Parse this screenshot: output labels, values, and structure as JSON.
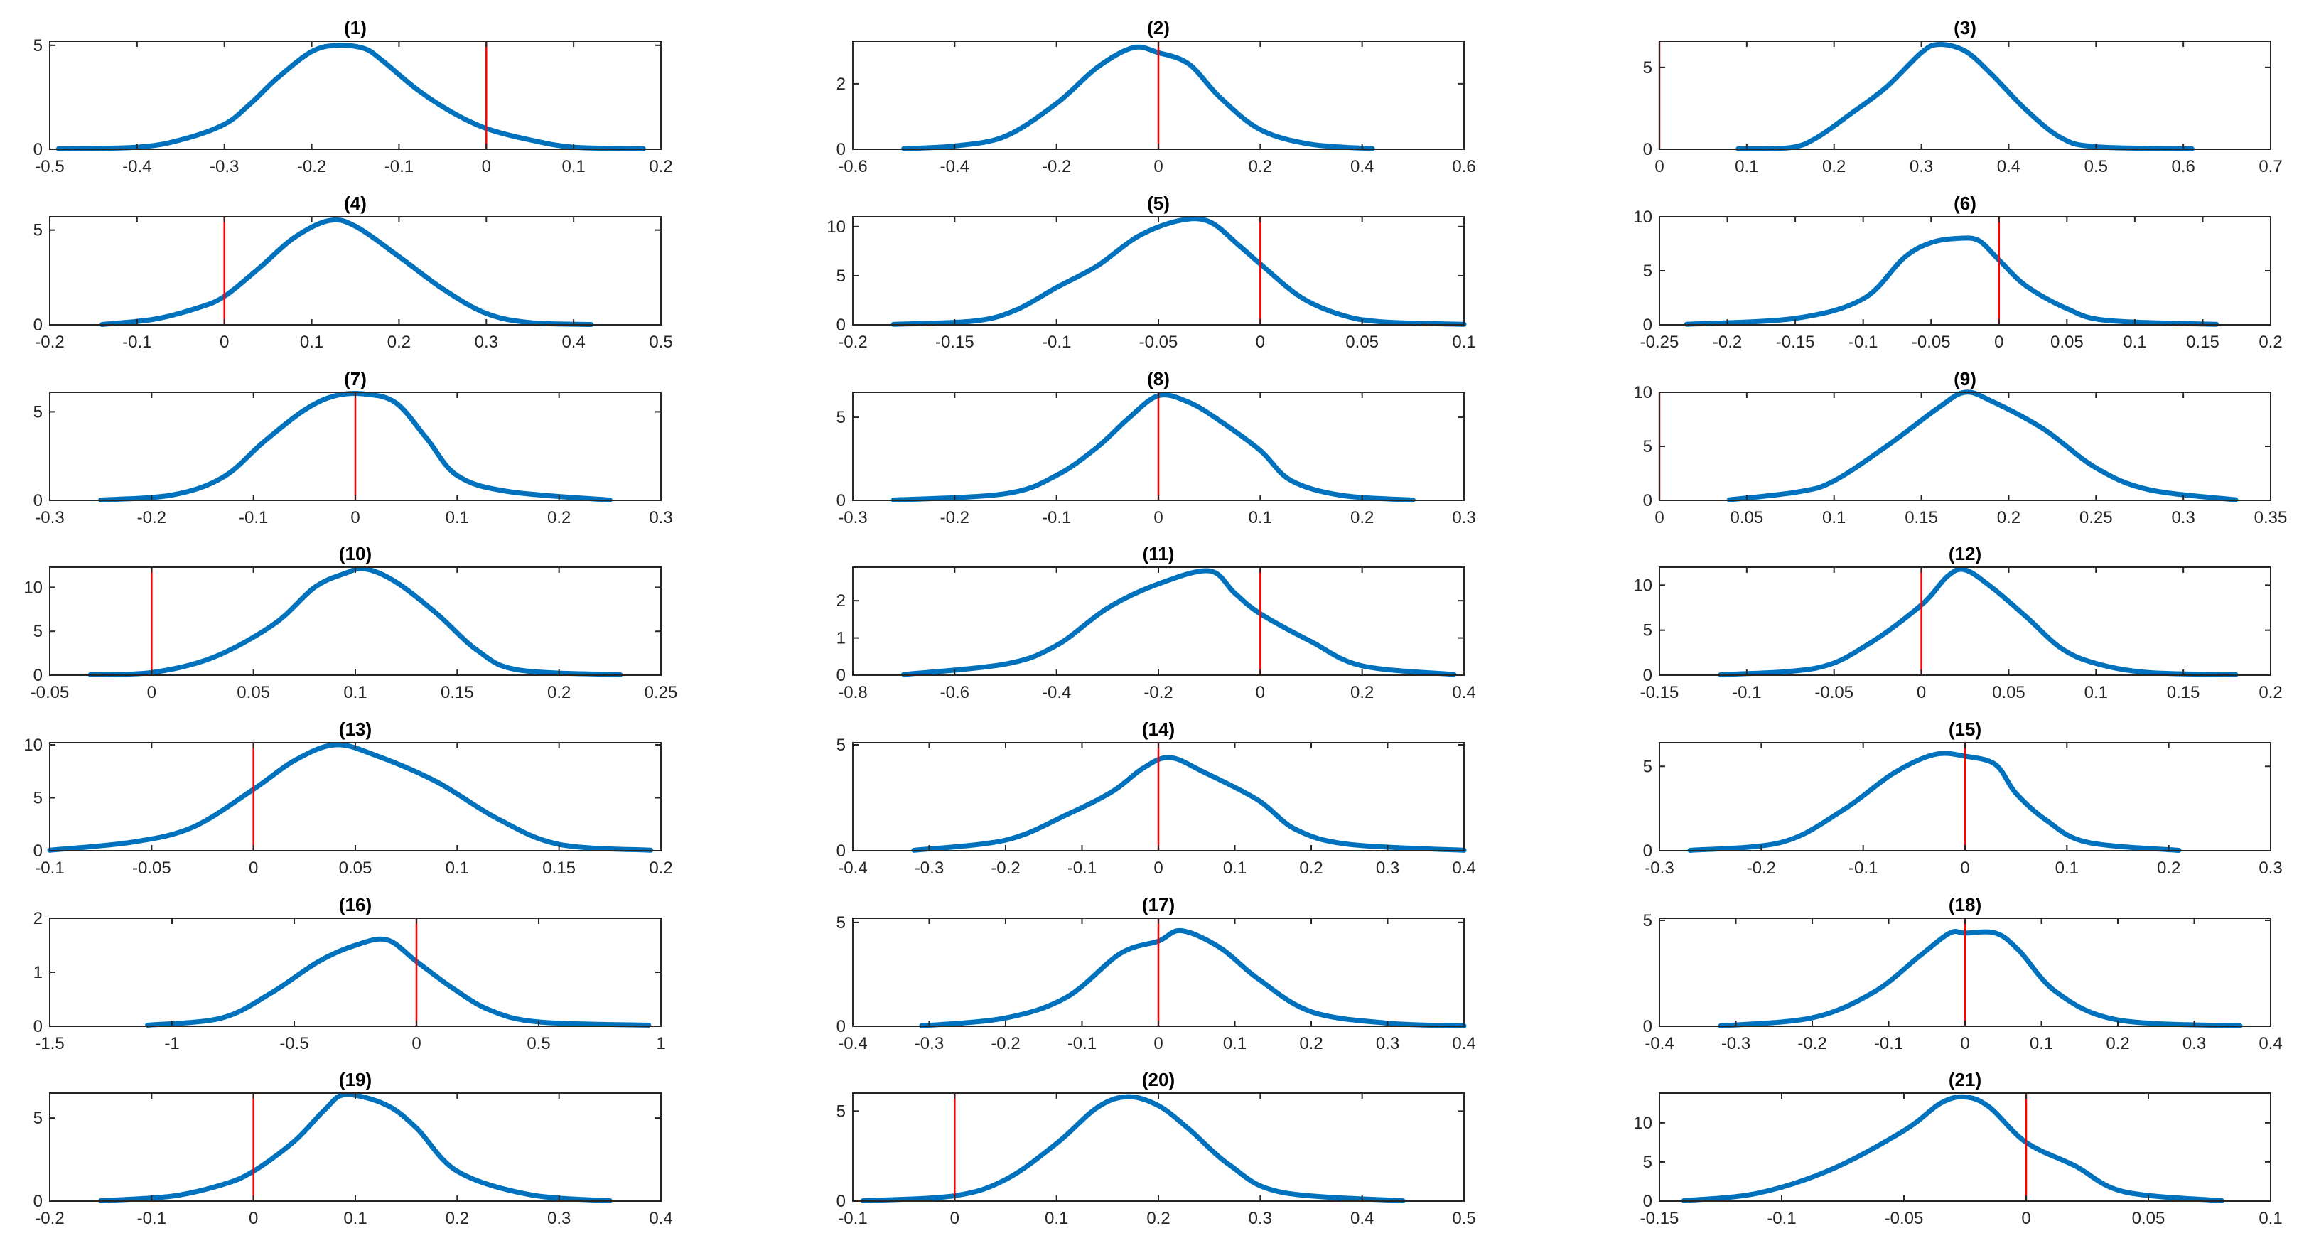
{
  "colors": {
    "density": "#0072BD",
    "reference_line": "#FF0000",
    "axes": "#262626",
    "background": "#ffffff"
  },
  "chart_data": [
    {
      "type": "line",
      "title": "(1)",
      "xlim": [
        -0.5,
        0.2
      ],
      "ylim": [
        0,
        5.2
      ],
      "xticks": [
        -0.5,
        -0.4,
        -0.3,
        -0.2,
        -0.1,
        0,
        0.1,
        0.2
      ],
      "xtick_labels": [
        "-0.5",
        "-0.4",
        "-0.3",
        "-0.2",
        "-0.1",
        "0",
        "0.1",
        "0.2"
      ],
      "yticks": [
        0,
        5
      ],
      "ytick_labels": [
        "0",
        "5"
      ],
      "reference_x": 0,
      "x": [
        -0.49,
        -0.4,
        -0.35,
        -0.3,
        -0.27,
        -0.24,
        -0.2,
        -0.17,
        -0.14,
        -0.12,
        -0.08,
        -0.04,
        0,
        0.05,
        0.1,
        0.18
      ],
      "y": [
        0.02,
        0.1,
        0.45,
        1.2,
        2.2,
        3.4,
        4.7,
        5.0,
        4.85,
        4.3,
        2.9,
        1.8,
        1.0,
        0.45,
        0.1,
        0.02
      ]
    },
    {
      "type": "line",
      "title": "(2)",
      "xlim": [
        -0.6,
        0.6
      ],
      "ylim": [
        0,
        3.3
      ],
      "xticks": [
        -0.6,
        -0.4,
        -0.2,
        0,
        0.2,
        0.4,
        0.6
      ],
      "xtick_labels": [
        "-0.6",
        "-0.4",
        "-0.2",
        "0",
        "0.2",
        "0.4",
        "0.6"
      ],
      "yticks": [
        0,
        2
      ],
      "ytick_labels": [
        "0",
        "2"
      ],
      "reference_x": 0,
      "x": [
        -0.5,
        -0.4,
        -0.3,
        -0.2,
        -0.12,
        -0.05,
        0.0,
        0.06,
        0.12,
        0.2,
        0.3,
        0.42
      ],
      "y": [
        0.02,
        0.1,
        0.4,
        1.4,
        2.5,
        3.1,
        2.95,
        2.6,
        1.6,
        0.6,
        0.15,
        0.02
      ]
    },
    {
      "type": "line",
      "title": "(3)",
      "xlim": [
        0,
        0.7
      ],
      "ylim": [
        0,
        6.6
      ],
      "xticks": [
        0,
        0.1,
        0.2,
        0.3,
        0.4,
        0.5,
        0.6,
        0.7
      ],
      "xtick_labels": [
        "0",
        "0.1",
        "0.2",
        "0.3",
        "0.4",
        "0.5",
        "0.6",
        "0.7"
      ],
      "yticks": [
        0,
        5
      ],
      "ytick_labels": [
        "0",
        "5"
      ],
      "reference_x": 0,
      "x": [
        0.09,
        0.15,
        0.18,
        0.22,
        0.26,
        0.3,
        0.32,
        0.35,
        0.38,
        0.42,
        0.46,
        0.5,
        0.61
      ],
      "y": [
        0.02,
        0.1,
        0.7,
        2.2,
        3.8,
        5.9,
        6.4,
        6.0,
        4.6,
        2.4,
        0.7,
        0.15,
        0.02
      ]
    },
    {
      "type": "line",
      "title": "(4)",
      "xlim": [
        -0.2,
        0.5
      ],
      "ylim": [
        0,
        5.7
      ],
      "xticks": [
        -0.2,
        -0.1,
        0,
        0.1,
        0.2,
        0.3,
        0.4,
        0.5
      ],
      "xtick_labels": [
        "-0.2",
        "-0.1",
        "0",
        "0.1",
        "0.2",
        "0.3",
        "0.4",
        "0.5"
      ],
      "yticks": [
        0,
        5
      ],
      "ytick_labels": [
        "0",
        "5"
      ],
      "reference_x": 0,
      "x": [
        -0.14,
        -0.08,
        -0.03,
        0.0,
        0.04,
        0.08,
        0.12,
        0.15,
        0.2,
        0.25,
        0.3,
        0.35,
        0.42
      ],
      "y": [
        0.02,
        0.3,
        0.9,
        1.5,
        3.0,
        4.6,
        5.5,
        5.2,
        3.6,
        1.9,
        0.6,
        0.12,
        0.02
      ]
    },
    {
      "type": "line",
      "title": "(5)",
      "xlim": [
        -0.2,
        0.1
      ],
      "ylim": [
        0,
        11
      ],
      "xticks": [
        -0.2,
        -0.15,
        -0.1,
        -0.05,
        0,
        0.05,
        0.1
      ],
      "xtick_labels": [
        "-0.2",
        "-0.15",
        "-0.1",
        "-0.05",
        "0",
        "0.05",
        "0.1"
      ],
      "yticks": [
        0,
        5,
        10
      ],
      "ytick_labels": [
        "0",
        "5",
        "10"
      ],
      "reference_x": 0,
      "x": [
        -0.18,
        -0.14,
        -0.12,
        -0.1,
        -0.08,
        -0.06,
        -0.04,
        -0.025,
        -0.01,
        0.0,
        0.02,
        0.04,
        0.06,
        0.1
      ],
      "y": [
        0.05,
        0.4,
        1.5,
        3.8,
        6.0,
        9.0,
        10.6,
        10.5,
        8.0,
        6.2,
        2.8,
        1.0,
        0.3,
        0.05
      ]
    },
    {
      "type": "line",
      "title": "(6)",
      "xlim": [
        -0.25,
        0.2
      ],
      "ylim": [
        0,
        10
      ],
      "xticks": [
        -0.25,
        -0.2,
        -0.15,
        -0.1,
        -0.05,
        0,
        0.05,
        0.1,
        0.15,
        0.2
      ],
      "xtick_labels": [
        "-0.25",
        "-0.2",
        "-0.15",
        "-0.1",
        "-0.05",
        "0",
        "0.05",
        "0.1",
        "0.15",
        "0.2"
      ],
      "yticks": [
        0,
        5,
        10
      ],
      "ytick_labels": [
        "0",
        "5",
        "10"
      ],
      "reference_x": 0,
      "x": [
        -0.23,
        -0.15,
        -0.1,
        -0.07,
        -0.05,
        -0.03,
        -0.015,
        0.0,
        0.02,
        0.05,
        0.08,
        0.16
      ],
      "y": [
        0.05,
        0.6,
        2.4,
        6.2,
        7.6,
        8.0,
        7.8,
        6.0,
        3.6,
        1.5,
        0.4,
        0.05
      ]
    },
    {
      "type": "line",
      "title": "(7)",
      "xlim": [
        -0.3,
        0.3
      ],
      "ylim": [
        0,
        6.1
      ],
      "xticks": [
        -0.3,
        -0.2,
        -0.1,
        0,
        0.1,
        0.2,
        0.3
      ],
      "xtick_labels": [
        "-0.3",
        "-0.2",
        "-0.1",
        "0",
        "0.1",
        "0.2",
        "0.3"
      ],
      "yticks": [
        0,
        5
      ],
      "ytick_labels": [
        "0",
        "5"
      ],
      "reference_x": 0,
      "x": [
        -0.25,
        -0.18,
        -0.13,
        -0.09,
        -0.05,
        -0.02,
        0.01,
        0.04,
        0.07,
        0.1,
        0.15,
        0.25
      ],
      "y": [
        0.02,
        0.3,
        1.3,
        3.3,
        5.1,
        5.9,
        6.0,
        5.5,
        3.5,
        1.4,
        0.5,
        0.02
      ]
    },
    {
      "type": "line",
      "title": "(8)",
      "xlim": [
        -0.3,
        0.3
      ],
      "ylim": [
        0,
        6.5
      ],
      "xticks": [
        -0.3,
        -0.2,
        -0.1,
        0,
        0.1,
        0.2,
        0.3
      ],
      "xtick_labels": [
        "-0.3",
        "-0.2",
        "-0.1",
        "0",
        "0.1",
        "0.2",
        "0.3"
      ],
      "yticks": [
        0,
        5
      ],
      "ytick_labels": [
        "0",
        "5"
      ],
      "reference_x": 0,
      "x": [
        -0.26,
        -0.15,
        -0.1,
        -0.06,
        -0.03,
        0.0,
        0.03,
        0.06,
        0.1,
        0.13,
        0.18,
        0.25
      ],
      "y": [
        0.02,
        0.4,
        1.5,
        3.2,
        4.9,
        6.3,
        5.9,
        4.8,
        3.0,
        1.2,
        0.3,
        0.02
      ]
    },
    {
      "type": "line",
      "title": "(9)",
      "xlim": [
        0,
        0.35
      ],
      "ylim": [
        0,
        10
      ],
      "xticks": [
        0,
        0.05,
        0.1,
        0.15,
        0.2,
        0.25,
        0.3,
        0.35
      ],
      "xtick_labels": [
        "0",
        "0.05",
        "0.1",
        "0.15",
        "0.2",
        "0.25",
        "0.3",
        "0.35"
      ],
      "yticks": [
        0,
        5,
        10
      ],
      "ytick_labels": [
        "0",
        "5",
        "10"
      ],
      "reference_x": 0,
      "x": [
        0.04,
        0.08,
        0.1,
        0.13,
        0.16,
        0.175,
        0.19,
        0.22,
        0.25,
        0.28,
        0.33
      ],
      "y": [
        0.05,
        0.8,
        1.8,
        5.0,
        8.6,
        10.0,
        9.2,
        6.6,
        3.0,
        1.0,
        0.05
      ]
    },
    {
      "type": "line",
      "title": "(10)",
      "xlim": [
        -0.05,
        0.25
      ],
      "ylim": [
        0,
        12.3
      ],
      "xticks": [
        -0.05,
        0,
        0.05,
        0.1,
        0.15,
        0.2,
        0.25
      ],
      "xtick_labels": [
        "-0.05",
        "0",
        "0.05",
        "0.1",
        "0.15",
        "0.2",
        "0.25"
      ],
      "yticks": [
        0,
        5,
        10
      ],
      "ytick_labels": [
        "0",
        "5",
        "10"
      ],
      "reference_x": 0,
      "x": [
        -0.03,
        0.0,
        0.03,
        0.06,
        0.08,
        0.095,
        0.105,
        0.12,
        0.14,
        0.16,
        0.18,
        0.23
      ],
      "y": [
        0.05,
        0.3,
        2.0,
        5.8,
        10.0,
        11.6,
        12.1,
        10.6,
        7.0,
        2.8,
        0.6,
        0.05
      ]
    },
    {
      "type": "line",
      "title": "(11)",
      "xlim": [
        -0.8,
        0.4
      ],
      "ylim": [
        0,
        2.9
      ],
      "xticks": [
        -0.8,
        -0.6,
        -0.4,
        -0.2,
        0,
        0.2,
        0.4
      ],
      "xtick_labels": [
        "-0.8",
        "-0.6",
        "-0.4",
        "-0.2",
        "0",
        "0.2",
        "0.4"
      ],
      "yticks": [
        0,
        1,
        2
      ],
      "ytick_labels": [
        "0",
        "1",
        "2"
      ],
      "reference_x": 0,
      "x": [
        -0.7,
        -0.5,
        -0.4,
        -0.3,
        -0.2,
        -0.1,
        -0.05,
        0.0,
        0.1,
        0.2,
        0.38
      ],
      "y": [
        0.02,
        0.3,
        0.8,
        1.8,
        2.45,
        2.8,
        2.2,
        1.65,
        0.9,
        0.25,
        0.02
      ]
    },
    {
      "type": "line",
      "title": "(12)",
      "xlim": [
        -0.15,
        0.2
      ],
      "ylim": [
        0,
        12
      ],
      "xticks": [
        -0.15,
        -0.1,
        -0.05,
        0,
        0.05,
        0.1,
        0.15,
        0.2
      ],
      "xtick_labels": [
        "-0.15",
        "-0.1",
        "-0.05",
        "0",
        "0.05",
        "0.1",
        "0.15",
        "0.2"
      ],
      "yticks": [
        0,
        5,
        10
      ],
      "ytick_labels": [
        "0",
        "5",
        "10"
      ],
      "reference_x": 0,
      "x": [
        -0.115,
        -0.06,
        -0.03,
        0.0,
        0.015,
        0.025,
        0.04,
        0.06,
        0.08,
        0.1,
        0.13,
        0.18
      ],
      "y": [
        0.05,
        0.8,
        3.5,
        7.8,
        11.0,
        11.7,
        9.8,
        6.5,
        3.0,
        1.3,
        0.3,
        0.05
      ]
    },
    {
      "type": "line",
      "title": "(13)",
      "xlim": [
        -0.1,
        0.2
      ],
      "ylim": [
        0,
        10.2
      ],
      "xticks": [
        -0.1,
        -0.05,
        0,
        0.05,
        0.1,
        0.15,
        0.2
      ],
      "xtick_labels": [
        "-0.1",
        "-0.05",
        "0",
        "0.05",
        "0.1",
        "0.15",
        "0.2"
      ],
      "yticks": [
        0,
        5,
        10
      ],
      "ytick_labels": [
        "0",
        "5",
        "10"
      ],
      "reference_x": 0,
      "x": [
        -0.1,
        -0.06,
        -0.03,
        0.0,
        0.02,
        0.04,
        0.06,
        0.09,
        0.12,
        0.15,
        0.195
      ],
      "y": [
        0.05,
        0.8,
        2.2,
        5.8,
        8.5,
        10.0,
        9.0,
        6.5,
        3.0,
        0.6,
        0.05
      ]
    },
    {
      "type": "line",
      "title": "(14)",
      "xlim": [
        -0.4,
        0.4
      ],
      "ylim": [
        0,
        5.1
      ],
      "xticks": [
        -0.4,
        -0.3,
        -0.2,
        -0.1,
        0,
        0.1,
        0.2,
        0.3,
        0.4
      ],
      "xtick_labels": [
        "-0.4",
        "-0.3",
        "-0.2",
        "-0.1",
        "0",
        "0.1",
        "0.2",
        "0.3",
        "0.4"
      ],
      "yticks": [
        0,
        5
      ],
      "ytick_labels": [
        "0",
        "5"
      ],
      "reference_x": 0,
      "x": [
        -0.32,
        -0.2,
        -0.12,
        -0.06,
        -0.02,
        0.015,
        0.06,
        0.13,
        0.18,
        0.25,
        0.4
      ],
      "y": [
        0.02,
        0.5,
        1.7,
        2.8,
        3.9,
        4.4,
        3.7,
        2.4,
        1.0,
        0.3,
        0.02
      ]
    },
    {
      "type": "line",
      "title": "(15)",
      "xlim": [
        -0.3,
        0.3
      ],
      "ylim": [
        0,
        6.4
      ],
      "xticks": [
        -0.3,
        -0.2,
        -0.1,
        0,
        0.1,
        0.2,
        0.3
      ],
      "xtick_labels": [
        "-0.3",
        "-0.2",
        "-0.1",
        "0",
        "0.1",
        "0.2",
        "0.3"
      ],
      "yticks": [
        0,
        5
      ],
      "ytick_labels": [
        "0",
        "5"
      ],
      "reference_x": 0,
      "x": [
        -0.27,
        -0.18,
        -0.12,
        -0.07,
        -0.03,
        0.0,
        0.03,
        0.05,
        0.08,
        0.12,
        0.21
      ],
      "y": [
        0.02,
        0.5,
        2.4,
        4.6,
        5.7,
        5.6,
        5.1,
        3.4,
        1.8,
        0.5,
        0.02
      ]
    },
    {
      "type": "line",
      "title": "(16)",
      "xlim": [
        -1.5,
        1
      ],
      "ylim": [
        0,
        2
      ],
      "xticks": [
        -1.5,
        -1,
        -0.5,
        0,
        0.5,
        1
      ],
      "xtick_labels": [
        "-1.5",
        "-1",
        "-0.5",
        "0",
        "0.5",
        "1"
      ],
      "yticks": [
        0,
        1,
        2
      ],
      "ytick_labels": [
        "0",
        "1",
        "2"
      ],
      "reference_x": 0,
      "x": [
        -1.1,
        -0.8,
        -0.6,
        -0.4,
        -0.25,
        -0.12,
        0.0,
        0.15,
        0.3,
        0.5,
        0.95
      ],
      "y": [
        0.02,
        0.15,
        0.6,
        1.2,
        1.5,
        1.6,
        1.2,
        0.7,
        0.3,
        0.08,
        0.02
      ]
    },
    {
      "type": "line",
      "title": "(17)",
      "xlim": [
        -0.4,
        0.4
      ],
      "ylim": [
        0,
        5.2
      ],
      "xticks": [
        -0.4,
        -0.3,
        -0.2,
        -0.1,
        0,
        0.1,
        0.2,
        0.3,
        0.4
      ],
      "xtick_labels": [
        "-0.4",
        "-0.3",
        "-0.2",
        "-0.1",
        "0",
        "0.1",
        "0.2",
        "0.3",
        "0.4"
      ],
      "yticks": [
        0,
        5
      ],
      "ytick_labels": [
        "0",
        "5"
      ],
      "reference_x": 0,
      "x": [
        -0.31,
        -0.2,
        -0.12,
        -0.05,
        0.0,
        0.03,
        0.08,
        0.13,
        0.2,
        0.3,
        0.4
      ],
      "y": [
        0.02,
        0.4,
        1.4,
        3.5,
        4.1,
        4.6,
        3.8,
        2.3,
        0.7,
        0.15,
        0.02
      ]
    },
    {
      "type": "line",
      "title": "(18)",
      "xlim": [
        -0.4,
        0.4
      ],
      "ylim": [
        0,
        5.1
      ],
      "xticks": [
        -0.4,
        -0.3,
        -0.2,
        -0.1,
        0,
        0.1,
        0.2,
        0.3,
        0.4
      ],
      "xtick_labels": [
        "-0.4",
        "-0.3",
        "-0.2",
        "-0.1",
        "0",
        "0.1",
        "0.2",
        "0.3",
        "0.4"
      ],
      "yticks": [
        0,
        5
      ],
      "ytick_labels": [
        "0",
        "5"
      ],
      "reference_x": 0,
      "x": [
        -0.32,
        -0.2,
        -0.12,
        -0.06,
        -0.02,
        0.0,
        0.04,
        0.07,
        0.12,
        0.2,
        0.36
      ],
      "y": [
        0.02,
        0.4,
        1.6,
        3.3,
        4.4,
        4.4,
        4.4,
        3.6,
        1.6,
        0.3,
        0.02
      ]
    },
    {
      "type": "line",
      "title": "(19)",
      "xlim": [
        -0.2,
        0.4
      ],
      "ylim": [
        0,
        6.5
      ],
      "xticks": [
        -0.2,
        -0.1,
        0,
        0.1,
        0.2,
        0.3,
        0.4
      ],
      "xtick_labels": [
        "-0.2",
        "-0.1",
        "0",
        "0.1",
        "0.2",
        "0.3",
        "0.4"
      ],
      "yticks": [
        0,
        5
      ],
      "ytick_labels": [
        "0",
        "5"
      ],
      "reference_x": 0,
      "x": [
        -0.15,
        -0.08,
        -0.03,
        0.0,
        0.04,
        0.07,
        0.09,
        0.13,
        0.16,
        0.2,
        0.27,
        0.35
      ],
      "y": [
        0.02,
        0.3,
        1.0,
        1.8,
        3.6,
        5.5,
        6.4,
        5.8,
        4.4,
        1.8,
        0.4,
        0.02
      ]
    },
    {
      "type": "line",
      "title": "(20)",
      "xlim": [
        -0.1,
        0.5
      ],
      "ylim": [
        0,
        6
      ],
      "xticks": [
        -0.1,
        0,
        0.1,
        0.2,
        0.3,
        0.4,
        0.5
      ],
      "xtick_labels": [
        "-0.1",
        "0",
        "0.1",
        "0.2",
        "0.3",
        "0.4",
        "0.5"
      ],
      "yticks": [
        0,
        5
      ],
      "ytick_labels": [
        "0",
        "5"
      ],
      "reference_x": 0,
      "x": [
        -0.09,
        0.0,
        0.05,
        0.1,
        0.14,
        0.17,
        0.2,
        0.23,
        0.27,
        0.32,
        0.44
      ],
      "y": [
        0.02,
        0.3,
        1.2,
        3.2,
        5.2,
        5.8,
        5.3,
        4.0,
        2.0,
        0.5,
        0.02
      ]
    },
    {
      "type": "line",
      "title": "(21)",
      "xlim": [
        -0.15,
        0.1
      ],
      "ylim": [
        0,
        13.8
      ],
      "xticks": [
        -0.15,
        -0.1,
        -0.05,
        0,
        0.05,
        0.1
      ],
      "xtick_labels": [
        "-0.15",
        "-0.1",
        "-0.05",
        "0",
        "0.05",
        "0.1"
      ],
      "yticks": [
        0,
        5,
        10
      ],
      "ytick_labels": [
        "0",
        "5",
        "10"
      ],
      "reference_x": 0,
      "x": [
        -0.14,
        -0.11,
        -0.08,
        -0.05,
        -0.035,
        -0.025,
        -0.015,
        0.0,
        0.02,
        0.04,
        0.08
      ],
      "y": [
        0.05,
        1.0,
        4.0,
        9.0,
        12.5,
        13.3,
        12.0,
        7.5,
        4.5,
        1.2,
        0.05
      ]
    }
  ]
}
